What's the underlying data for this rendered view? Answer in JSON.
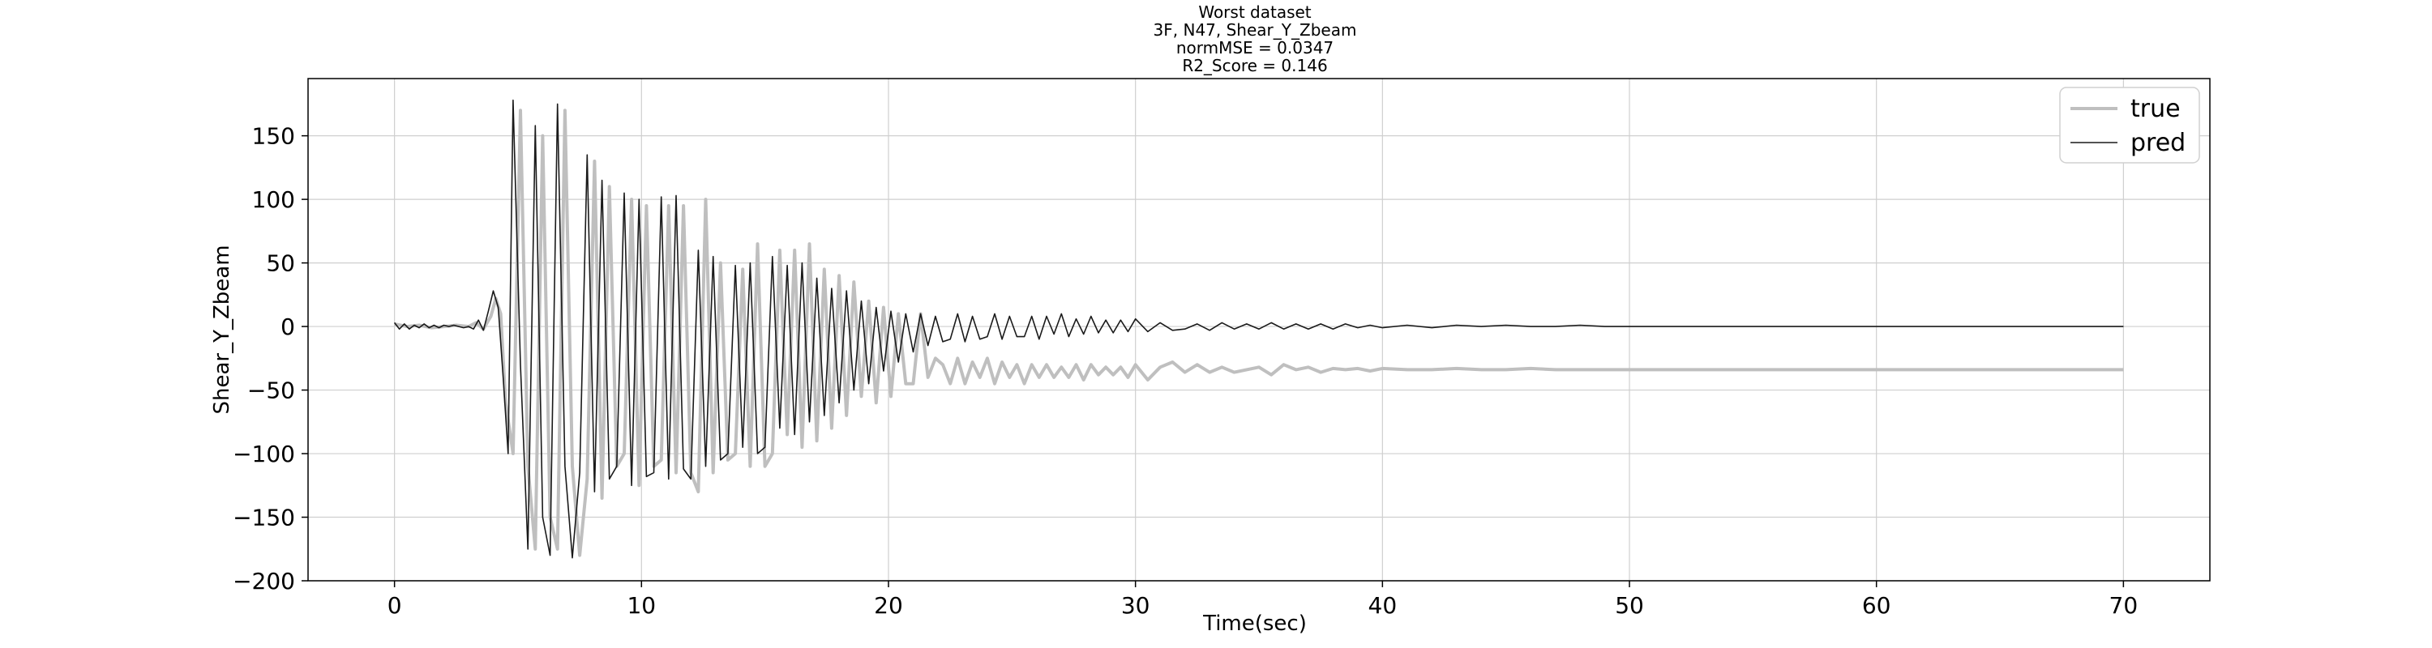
{
  "chart_data": {
    "type": "line",
    "title_lines": [
      "Worst dataset",
      "3F, N47, Shear_Y_Zbeam",
      "normMSE = 0.0347",
      "R2_Score = 0.146"
    ],
    "xlabel": "Time(sec)",
    "ylabel": "Shear_Y_Zbeam",
    "xlim": [
      -3.5,
      73.5
    ],
    "ylim": [
      -200,
      195
    ],
    "x_ticks": [
      0,
      10,
      20,
      30,
      40,
      50,
      60,
      70
    ],
    "x_tick_labels": [
      "0",
      "10",
      "20",
      "30",
      "40",
      "50",
      "60",
      "70"
    ],
    "y_ticks": [
      150,
      100,
      50,
      0,
      -50,
      -100,
      -150,
      -200
    ],
    "y_tick_labels": [
      "150",
      "100",
      "50",
      "0",
      "−50",
      "−100",
      "−150",
      "−200"
    ],
    "grid": true,
    "legend_position": "top-right",
    "legend_labels": [
      "true",
      "pred"
    ],
    "series": [
      {
        "name": "true",
        "color": "#bfbfbf",
        "x": [
          0,
          0.5,
          1,
          1.5,
          2,
          2.5,
          3,
          3.3,
          3.6,
          3.9,
          4.1,
          4.3,
          4.5,
          4.8,
          5.1,
          5.4,
          5.7,
          6.0,
          6.3,
          6.6,
          6.9,
          7.2,
          7.5,
          7.8,
          8.1,
          8.4,
          8.7,
          9.0,
          9.3,
          9.6,
          9.9,
          10.2,
          10.5,
          10.8,
          11.1,
          11.4,
          11.7,
          12.0,
          12.3,
          12.6,
          12.9,
          13.2,
          13.5,
          13.8,
          14.1,
          14.4,
          14.7,
          15.0,
          15.3,
          15.6,
          15.9,
          16.2,
          16.5,
          16.8,
          17.1,
          17.4,
          17.7,
          18.0,
          18.3,
          18.6,
          18.9,
          19.2,
          19.5,
          19.8,
          20.1,
          20.4,
          20.7,
          21.0,
          21.3,
          21.6,
          21.9,
          22.2,
          22.5,
          22.8,
          23.1,
          23.4,
          23.7,
          24.0,
          24.3,
          24.6,
          24.9,
          25.2,
          25.5,
          25.8,
          26.1,
          26.4,
          26.7,
          27.0,
          27.3,
          27.6,
          27.9,
          28.2,
          28.5,
          28.8,
          29.1,
          29.4,
          29.7,
          30.0,
          30.5,
          31,
          31.5,
          32,
          32.5,
          33,
          33.5,
          34,
          34.5,
          35,
          35.5,
          36,
          36.5,
          37,
          37.5,
          38,
          38.5,
          39,
          39.5,
          40,
          41,
          42,
          43,
          44,
          45,
          46,
          47,
          48,
          49,
          50,
          52,
          54,
          56,
          58,
          60,
          62,
          64,
          66,
          68,
          70
        ],
        "values": [
          2,
          0,
          1,
          -1,
          0,
          1,
          0,
          3,
          -2,
          8,
          22,
          10,
          -60,
          -100,
          170,
          -110,
          -175,
          150,
          -150,
          -175,
          170,
          -110,
          -180,
          -120,
          130,
          -135,
          110,
          -110,
          -100,
          100,
          -125,
          95,
          -110,
          -105,
          95,
          -115,
          95,
          -115,
          -130,
          100,
          -115,
          50,
          -105,
          -100,
          45,
          -110,
          65,
          -110,
          -100,
          60,
          -85,
          60,
          -95,
          65,
          -90,
          45,
          -80,
          40,
          -70,
          35,
          -55,
          20,
          -60,
          15,
          -55,
          10,
          -45,
          -45,
          10,
          -40,
          -25,
          -30,
          -45,
          -25,
          -45,
          -28,
          -40,
          -25,
          -45,
          -28,
          -40,
          -30,
          -45,
          -30,
          -40,
          -30,
          -40,
          -32,
          -40,
          -30,
          -42,
          -30,
          -38,
          -32,
          -38,
          -32,
          -40,
          -30,
          -42,
          -32,
          -28,
          -36,
          -30,
          -36,
          -32,
          -36,
          -34,
          -32,
          -38,
          -30,
          -34,
          -32,
          -36,
          -33,
          -34,
          -33,
          -35,
          -33,
          -34,
          -34,
          -33,
          -34,
          -34,
          -33,
          -34,
          -34,
          -34,
          -34,
          -34,
          -34,
          -34,
          -34,
          -34,
          -34,
          -34,
          -34,
          -34,
          -34
        ]
      },
      {
        "name": "pred",
        "color": "#1a1a1a",
        "x": [
          0,
          0.2,
          0.4,
          0.6,
          0.8,
          1.0,
          1.2,
          1.4,
          1.6,
          1.8,
          2.0,
          2.2,
          2.4,
          2.6,
          2.8,
          3.0,
          3.2,
          3.4,
          3.6,
          3.8,
          4.0,
          4.2,
          4.4,
          4.6,
          4.8,
          5.1,
          5.4,
          5.7,
          6.0,
          6.3,
          6.6,
          6.9,
          7.2,
          7.5,
          7.8,
          8.1,
          8.4,
          8.7,
          9.0,
          9.3,
          9.6,
          9.9,
          10.2,
          10.5,
          10.8,
          11.1,
          11.4,
          11.7,
          12.0,
          12.3,
          12.6,
          12.9,
          13.2,
          13.5,
          13.8,
          14.1,
          14.4,
          14.7,
          15.0,
          15.3,
          15.6,
          15.9,
          16.2,
          16.5,
          16.8,
          17.1,
          17.4,
          17.7,
          18.0,
          18.3,
          18.6,
          18.9,
          19.2,
          19.5,
          19.8,
          20.1,
          20.4,
          20.7,
          21.0,
          21.3,
          21.6,
          21.9,
          22.2,
          22.5,
          22.8,
          23.1,
          23.4,
          23.7,
          24.0,
          24.3,
          24.6,
          24.9,
          25.2,
          25.5,
          25.8,
          26.1,
          26.4,
          26.7,
          27.0,
          27.3,
          27.6,
          27.9,
          28.2,
          28.5,
          28.8,
          29.1,
          29.4,
          29.7,
          30.0,
          30.5,
          31.0,
          31.5,
          32.0,
          32.5,
          33.0,
          33.5,
          34.0,
          34.5,
          35.0,
          35.5,
          36.0,
          36.5,
          37.0,
          37.5,
          38.0,
          38.5,
          39.0,
          39.5,
          40.0,
          41,
          42,
          43,
          44,
          45,
          46,
          47,
          48,
          49,
          50,
          52,
          54,
          56,
          58,
          60,
          62,
          64,
          66,
          68,
          70
        ],
        "values": [
          3,
          -2,
          2,
          -2,
          1,
          -1,
          2,
          -1,
          1,
          -1,
          1,
          0,
          1,
          0,
          -1,
          0,
          -2,
          5,
          -3,
          12,
          28,
          15,
          -40,
          -100,
          178,
          -30,
          -175,
          158,
          -150,
          -180,
          175,
          -110,
          -182,
          -115,
          135,
          -130,
          115,
          -120,
          -110,
          105,
          -125,
          100,
          -118,
          -115,
          102,
          -120,
          103,
          -112,
          -120,
          60,
          -110,
          55,
          -105,
          -100,
          48,
          -95,
          50,
          -100,
          -95,
          55,
          -80,
          48,
          -85,
          50,
          -75,
          38,
          -70,
          30,
          -60,
          28,
          -50,
          20,
          -45,
          15,
          -35,
          12,
          -28,
          10,
          -20,
          10,
          -15,
          8,
          -12,
          -10,
          10,
          -12,
          8,
          -10,
          -8,
          10,
          -10,
          8,
          -8,
          -8,
          8,
          -10,
          8,
          -6,
          10,
          -8,
          6,
          -6,
          8,
          -5,
          5,
          -5,
          5,
          -4,
          6,
          -4,
          3,
          -3,
          -2,
          2,
          -3,
          3,
          -2,
          2,
          -2,
          3,
          -2,
          2,
          -2,
          2,
          -2,
          2,
          -1,
          1,
          -1,
          1,
          -1,
          1,
          0,
          1,
          0,
          0,
          1,
          0,
          0,
          0,
          0,
          0,
          0,
          0,
          0,
          0,
          0,
          0,
          0
        ]
      }
    ]
  }
}
